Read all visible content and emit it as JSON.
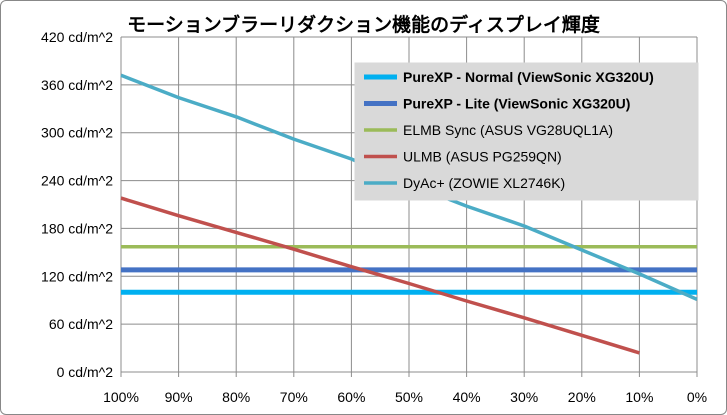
{
  "chart_data": {
    "type": "line",
    "title": "モーションブラーリダクション機能のディスプレイ輝度",
    "xlabel": "",
    "ylabel": "",
    "x_categories": [
      "100%",
      "90%",
      "80%",
      "70%",
      "60%",
      "50%",
      "40%",
      "30%",
      "20%",
      "10%",
      "0%"
    ],
    "x_values": [
      100,
      90,
      80,
      70,
      60,
      50,
      40,
      30,
      20,
      10,
      0
    ],
    "y_ticks": [
      0,
      60,
      120,
      180,
      240,
      300,
      360,
      420
    ],
    "y_tick_labels": [
      "0 cd/m^2",
      "60 cd/m^2",
      "120 cd/m^2",
      "180 cd/m^2",
      "240 cd/m^2",
      "300 cd/m^2",
      "360 cd/m^2",
      "420 cd/m^2"
    ],
    "ylim": [
      0,
      420
    ],
    "xlim": [
      100,
      0
    ],
    "grid": true,
    "legend_position": "top-right",
    "series": [
      {
        "name": "PureXP - Normal (ViewSonic XG320U)",
        "color": "#00B0F0",
        "bold": true,
        "x": [
          100,
          0
        ],
        "y": [
          100,
          100
        ]
      },
      {
        "name": "PureXP - Lite (ViewSonic XG320U)",
        "color": "#4472C4",
        "bold": true,
        "x": [
          100,
          0
        ],
        "y": [
          128,
          128
        ]
      },
      {
        "name": "ELMB Sync (ASUS VG28UQL1A)",
        "color": "#9BBB59",
        "bold": false,
        "x": [
          100,
          0
        ],
        "y": [
          157,
          157
        ]
      },
      {
        "name": "ULMB (ASUS PG259QN)",
        "color": "#C0504D",
        "bold": false,
        "x": [
          100,
          90,
          80,
          70,
          60,
          50,
          40,
          30,
          20,
          10
        ],
        "y": [
          218,
          196,
          175,
          154,
          132,
          111,
          89,
          68,
          46,
          24
        ]
      },
      {
        "name": "DyAc+ (ZOWIE XL2746K)",
        "color": "#4BACC6",
        "bold": false,
        "x": [
          100,
          90,
          80,
          70,
          60,
          50,
          40,
          30,
          20,
          10,
          0
        ],
        "y": [
          372,
          344,
          320,
          292,
          267,
          236,
          208,
          183,
          153,
          123,
          91
        ]
      }
    ]
  }
}
